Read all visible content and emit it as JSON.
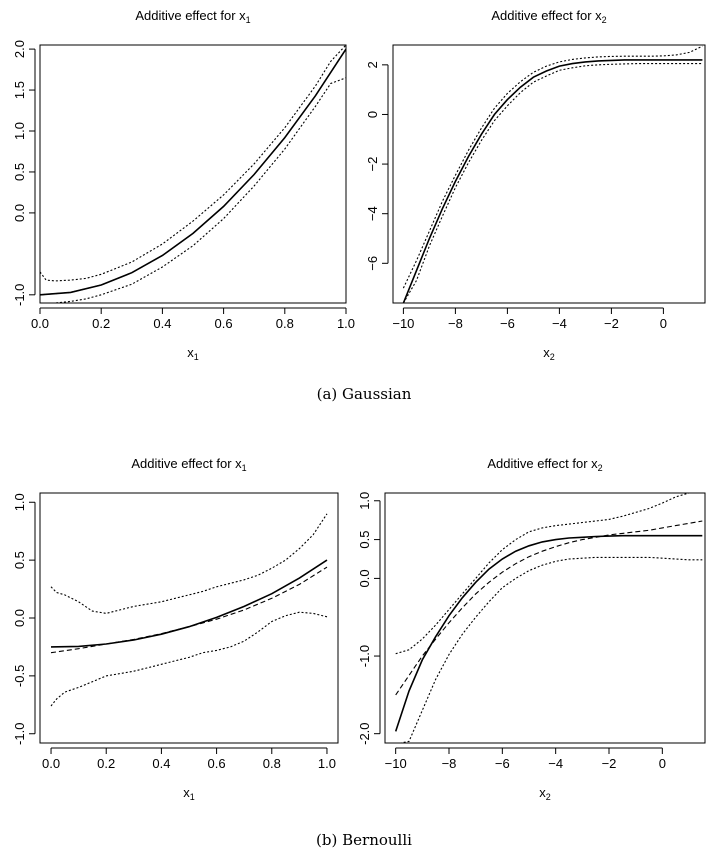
{
  "captions": {
    "a": "(a)  Gaussian",
    "b": "(b)  Bernoulli"
  },
  "colors": {
    "line": "#000000",
    "background": "#ffffff"
  },
  "chart_data": [
    {
      "type": "line",
      "panel": "a-left",
      "title": "Additive effect for x",
      "title_sub": "1",
      "xlabel": "x",
      "xlabel_sub": "1",
      "ylabel": "",
      "xlim": [
        0,
        1
      ],
      "ylim": [
        -1.1,
        2.05
      ],
      "xticks": [
        0.0,
        0.2,
        0.4,
        0.6,
        0.8,
        1.0
      ],
      "xtick_labels": [
        "0.0",
        "0.2",
        "0.4",
        "0.6",
        "0.8",
        "1.0"
      ],
      "yticks": [
        -1.0,
        0.0,
        0.5,
        1.0,
        1.5,
        2.0
      ],
      "ytick_labels": [
        "-1.0",
        "0.0",
        "0.5",
        "1.0",
        "1.5",
        "2.0"
      ],
      "grid": false,
      "series": [
        {
          "style": "solid",
          "x": [
            0.0,
            0.1,
            0.2,
            0.3,
            0.4,
            0.5,
            0.6,
            0.7,
            0.8,
            0.9,
            1.0
          ],
          "y": [
            -1.0,
            -0.97,
            -0.88,
            -0.73,
            -0.52,
            -0.25,
            0.08,
            0.47,
            0.92,
            1.43,
            2.0
          ]
        },
        {
          "style": "dashed",
          "x": [
            0.0,
            0.1,
            0.2,
            0.3,
            0.4,
            0.5,
            0.6,
            0.7,
            0.8,
            0.9,
            1.0
          ],
          "y": [
            -1.0,
            -0.97,
            -0.88,
            -0.73,
            -0.52,
            -0.25,
            0.08,
            0.47,
            0.92,
            1.43,
            2.0
          ]
        },
        {
          "style": "dotted",
          "x": [
            0.0,
            0.02,
            0.05,
            0.1,
            0.15,
            0.2,
            0.3,
            0.4,
            0.5,
            0.6,
            0.7,
            0.8,
            0.9,
            0.95,
            1.0
          ],
          "y": [
            -0.72,
            -0.82,
            -0.83,
            -0.82,
            -0.8,
            -0.75,
            -0.6,
            -0.38,
            -0.1,
            0.22,
            0.6,
            1.04,
            1.55,
            1.85,
            2.05
          ]
        },
        {
          "style": "dotted",
          "x": [
            0.0,
            0.02,
            0.05,
            0.1,
            0.15,
            0.2,
            0.3,
            0.4,
            0.5,
            0.6,
            0.7,
            0.8,
            0.9,
            0.95,
            1.0
          ],
          "y": [
            -1.1,
            -1.1,
            -1.1,
            -1.08,
            -1.05,
            -1.0,
            -0.87,
            -0.66,
            -0.4,
            -0.07,
            0.33,
            0.78,
            1.3,
            1.58,
            1.65
          ]
        }
      ]
    },
    {
      "type": "line",
      "panel": "a-right",
      "title": "Additive effect for x",
      "title_sub": "2",
      "xlabel": "x",
      "xlabel_sub": "2",
      "ylabel": "",
      "xlim": [
        -10.4,
        1.6
      ],
      "ylim": [
        -7.6,
        2.8
      ],
      "xticks": [
        -10,
        -8,
        -6,
        -4,
        -2,
        0
      ],
      "xtick_labels": [
        "−10",
        "−8",
        "−6",
        "−4",
        "−2",
        "0"
      ],
      "yticks": [
        -6,
        -4,
        -2,
        0,
        2
      ],
      "ytick_labels": [
        "−6",
        "−4",
        "−2",
        "0",
        "2"
      ],
      "grid": false,
      "series": [
        {
          "style": "solid",
          "x": [
            -10.0,
            -9.5,
            -9.0,
            -8.5,
            -8.0,
            -7.5,
            -7.0,
            -6.5,
            -6.0,
            -5.5,
            -5.0,
            -4.5,
            -4.0,
            -3.5,
            -3.0,
            -2.5,
            -2.0,
            -1.5,
            -1.0,
            -0.5,
            0.0,
            0.5,
            1.0,
            1.5
          ],
          "y": [
            -7.6,
            -6.3,
            -5.0,
            -3.8,
            -2.7,
            -1.7,
            -0.8,
            0.0,
            0.6,
            1.1,
            1.5,
            1.75,
            1.95,
            2.05,
            2.12,
            2.16,
            2.18,
            2.2,
            2.2,
            2.2,
            2.2,
            2.2,
            2.2,
            2.2
          ]
        },
        {
          "style": "dotted",
          "x": [
            -10.0,
            -9.5,
            -9.0,
            -8.5,
            -8.0,
            -7.5,
            -7.0,
            -6.5,
            -6.0,
            -5.5,
            -5.0,
            -4.5,
            -4.0,
            -3.5,
            -3.0,
            -2.5,
            -2.0,
            -1.5,
            -1.0,
            -0.5,
            0.0,
            0.5,
            1.0,
            1.5
          ],
          "y": [
            -7.0,
            -5.9,
            -4.7,
            -3.5,
            -2.45,
            -1.45,
            -0.55,
            0.25,
            0.85,
            1.32,
            1.7,
            1.95,
            2.12,
            2.22,
            2.28,
            2.32,
            2.34,
            2.35,
            2.35,
            2.35,
            2.36,
            2.4,
            2.5,
            2.75
          ]
        },
        {
          "style": "dotted",
          "x": [
            -10.0,
            -9.5,
            -9.0,
            -8.5,
            -8.0,
            -7.5,
            -7.0,
            -6.5,
            -6.0,
            -5.5,
            -5.0,
            -4.5,
            -4.0,
            -3.5,
            -3.0,
            -2.5,
            -2.0,
            -1.5,
            -1.0,
            -0.5,
            0.0,
            0.5,
            1.0,
            1.5
          ],
          "y": [
            -7.6,
            -6.7,
            -5.3,
            -4.1,
            -2.95,
            -1.95,
            -1.05,
            -0.25,
            0.35,
            0.88,
            1.3,
            1.55,
            1.78,
            1.88,
            1.96,
            2.0,
            2.02,
            2.04,
            2.05,
            2.05,
            2.05,
            2.05,
            2.05,
            2.05
          ]
        }
      ]
    },
    {
      "type": "line",
      "panel": "b-left",
      "title": "Additive effect for x",
      "title_sub": "1",
      "xlabel": "x",
      "xlabel_sub": "1",
      "ylabel": "",
      "xlim": [
        -0.04,
        1.04
      ],
      "ylim": [
        -1.08,
        1.08
      ],
      "xticks": [
        0.0,
        0.2,
        0.4,
        0.6,
        0.8,
        1.0
      ],
      "xtick_labels": [
        "0.0",
        "0.2",
        "0.4",
        "0.6",
        "0.8",
        "1.0"
      ],
      "yticks": [
        -1.0,
        -0.5,
        0.0,
        0.5,
        1.0
      ],
      "ytick_labels": [
        "-1.0",
        "-0.5",
        "0.0",
        "0.5",
        "1.0"
      ],
      "grid": false,
      "series": [
        {
          "style": "solid",
          "x": [
            0.0,
            0.1,
            0.2,
            0.3,
            0.4,
            0.5,
            0.6,
            0.7,
            0.8,
            0.9,
            1.0
          ],
          "y": [
            -0.25,
            -0.245,
            -0.225,
            -0.19,
            -0.14,
            -0.075,
            0.005,
            0.1,
            0.21,
            0.345,
            0.5
          ]
        },
        {
          "style": "dashed",
          "x": [
            0.0,
            0.1,
            0.2,
            0.3,
            0.4,
            0.5,
            0.6,
            0.7,
            0.8,
            0.9,
            1.0
          ],
          "y": [
            -0.3,
            -0.265,
            -0.225,
            -0.185,
            -0.135,
            -0.075,
            -0.01,
            0.07,
            0.17,
            0.29,
            0.44
          ]
        },
        {
          "style": "dotted",
          "x": [
            0.0,
            0.02,
            0.05,
            0.1,
            0.15,
            0.2,
            0.25,
            0.3,
            0.35,
            0.4,
            0.45,
            0.5,
            0.55,
            0.6,
            0.65,
            0.7,
            0.75,
            0.8,
            0.85,
            0.9,
            0.95,
            1.0
          ],
          "y": [
            0.27,
            0.22,
            0.2,
            0.14,
            0.06,
            0.04,
            0.07,
            0.1,
            0.12,
            0.14,
            0.17,
            0.2,
            0.23,
            0.27,
            0.3,
            0.33,
            0.37,
            0.43,
            0.5,
            0.6,
            0.72,
            0.9
          ]
        },
        {
          "style": "dotted",
          "x": [
            0.0,
            0.02,
            0.05,
            0.1,
            0.15,
            0.2,
            0.25,
            0.3,
            0.35,
            0.4,
            0.45,
            0.5,
            0.55,
            0.6,
            0.65,
            0.7,
            0.75,
            0.8,
            0.85,
            0.9,
            0.95,
            1.0
          ],
          "y": [
            -0.76,
            -0.7,
            -0.64,
            -0.6,
            -0.55,
            -0.5,
            -0.48,
            -0.46,
            -0.43,
            -0.4,
            -0.37,
            -0.34,
            -0.3,
            -0.28,
            -0.25,
            -0.2,
            -0.12,
            -0.03,
            0.02,
            0.05,
            0.04,
            0.01
          ]
        }
      ]
    },
    {
      "type": "line",
      "panel": "b-right",
      "title": "Additive effect for x",
      "title_sub": "2",
      "xlabel": "x",
      "xlabel_sub": "2",
      "ylabel": "",
      "xlim": [
        -10.4,
        1.6
      ],
      "ylim": [
        -2.12,
        1.1
      ],
      "xticks": [
        -10,
        -8,
        -6,
        -4,
        -2,
        0
      ],
      "xtick_labels": [
        "−10",
        "−8",
        "−6",
        "−4",
        "−2",
        "0"
      ],
      "yticks": [
        -2.0,
        -1.0,
        0.0,
        0.5,
        1.0
      ],
      "ytick_labels": [
        "-2.0",
        "-1.0",
        "0.0",
        "0.5",
        "1.0"
      ],
      "grid": false,
      "series": [
        {
          "style": "solid",
          "x": [
            -10.0,
            -9.5,
            -9.0,
            -8.5,
            -8.0,
            -7.5,
            -7.0,
            -6.5,
            -6.0,
            -5.5,
            -5.0,
            -4.5,
            -4.0,
            -3.5,
            -3.0,
            -2.5,
            -2.0,
            -1.5,
            -1.0,
            -0.5,
            0.0,
            0.5,
            1.0,
            1.5
          ],
          "y": [
            -1.97,
            -1.45,
            -1.05,
            -0.75,
            -0.48,
            -0.25,
            -0.05,
            0.12,
            0.25,
            0.35,
            0.42,
            0.47,
            0.5,
            0.52,
            0.53,
            0.54,
            0.545,
            0.55,
            0.55,
            0.55,
            0.55,
            0.55,
            0.55,
            0.55
          ]
        },
        {
          "style": "dashed",
          "x": [
            -10.0,
            -9.5,
            -9.0,
            -8.5,
            -8.0,
            -7.5,
            -7.0,
            -6.5,
            -6.0,
            -5.5,
            -5.0,
            -4.5,
            -4.0,
            -3.5,
            -3.0,
            -2.5,
            -2.0,
            -1.5,
            -1.0,
            -0.5,
            0.0,
            0.5,
            1.0,
            1.5
          ],
          "y": [
            -1.5,
            -1.25,
            -1.0,
            -0.78,
            -0.57,
            -0.38,
            -0.2,
            -0.05,
            0.08,
            0.19,
            0.28,
            0.35,
            0.41,
            0.46,
            0.5,
            0.53,
            0.56,
            0.58,
            0.6,
            0.62,
            0.65,
            0.68,
            0.71,
            0.74
          ]
        },
        {
          "style": "dotted",
          "x": [
            -10.0,
            -9.5,
            -9.0,
            -8.5,
            -8.0,
            -7.5,
            -7.0,
            -6.5,
            -6.0,
            -5.5,
            -5.0,
            -4.5,
            -4.0,
            -3.5,
            -3.0,
            -2.5,
            -2.0,
            -1.5,
            -1.0,
            -0.5,
            0.0,
            0.5,
            1.0,
            1.5
          ],
          "y": [
            -0.97,
            -0.92,
            -0.78,
            -0.6,
            -0.4,
            -0.2,
            0.0,
            0.2,
            0.37,
            0.5,
            0.6,
            0.65,
            0.68,
            0.7,
            0.72,
            0.74,
            0.76,
            0.8,
            0.85,
            0.9,
            0.97,
            1.05,
            1.1,
            1.1
          ]
        },
        {
          "style": "dotted",
          "x": [
            -10.0,
            -9.8,
            -9.5,
            -9.0,
            -8.5,
            -8.0,
            -7.5,
            -7.0,
            -6.5,
            -6.0,
            -5.5,
            -5.0,
            -4.5,
            -4.0,
            -3.5,
            -3.0,
            -2.5,
            -2.0,
            -1.5,
            -1.0,
            -0.5,
            0.0,
            0.5,
            1.0,
            1.5
          ],
          "y": [
            -2.12,
            -2.12,
            -2.1,
            -1.7,
            -1.3,
            -0.98,
            -0.72,
            -0.5,
            -0.3,
            -0.12,
            0.0,
            0.1,
            0.17,
            0.22,
            0.25,
            0.26,
            0.27,
            0.27,
            0.27,
            0.27,
            0.27,
            0.26,
            0.25,
            0.24,
            0.24
          ]
        }
      ]
    }
  ]
}
